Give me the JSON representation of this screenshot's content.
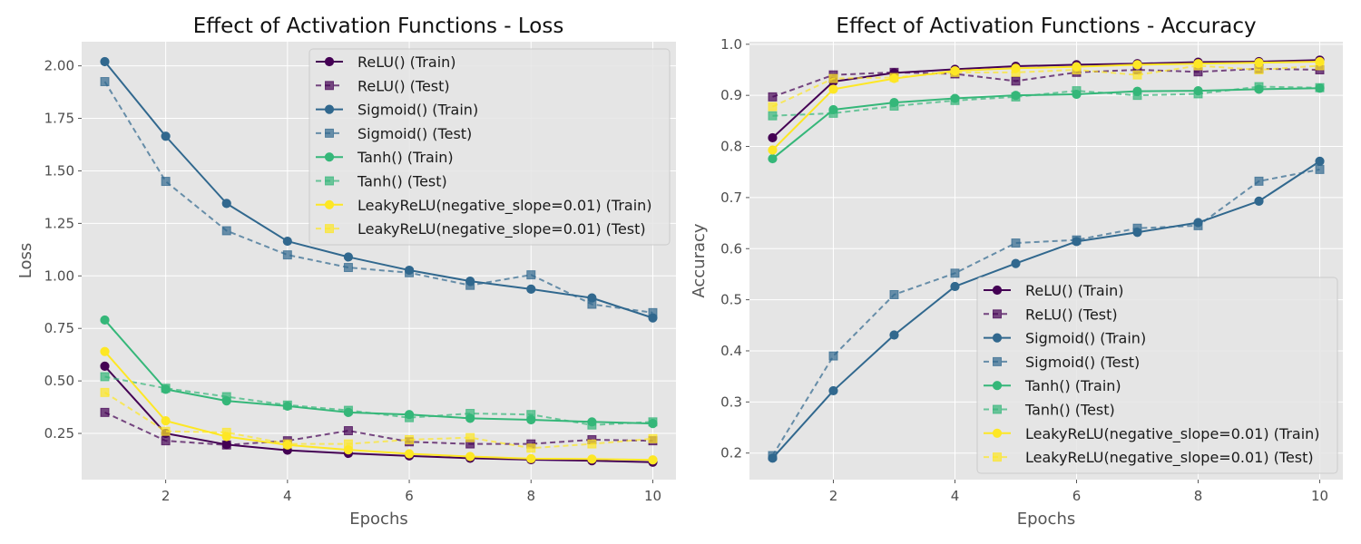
{
  "chart_data": [
    {
      "type": "line",
      "title": "Effect of Activation Functions - Loss",
      "xlabel": "Epochs",
      "ylabel": "Loss",
      "x": [
        1,
        2,
        3,
        4,
        5,
        6,
        7,
        8,
        9,
        10
      ],
      "xlim": [
        0.62,
        10.38
      ],
      "ylim": [
        0.03,
        2.115
      ],
      "xticks": [
        2,
        4,
        6,
        8,
        10
      ],
      "yticks": [
        0.25,
        0.5,
        0.75,
        1.0,
        1.25,
        1.5,
        1.75,
        2.0
      ],
      "ytick_decimals": 2,
      "grid": true,
      "legend_position": "upper right",
      "series": [
        {
          "name": "ReLU() (Train)",
          "color": "#440154",
          "style": "solid",
          "marker": "circle",
          "values": [
            0.57,
            0.25,
            0.197,
            0.17,
            0.155,
            0.143,
            0.132,
            0.125,
            0.12,
            0.113
          ]
        },
        {
          "name": "ReLU() (Test)",
          "color": "#440154",
          "style": "dashed",
          "marker": "square",
          "values": [
            0.35,
            0.215,
            0.195,
            0.215,
            0.263,
            0.21,
            0.2,
            0.2,
            0.22,
            0.215
          ]
        },
        {
          "name": "Sigmoid() (Train)",
          "color": "#31688e",
          "style": "solid",
          "marker": "circle",
          "values": [
            2.02,
            1.665,
            1.345,
            1.165,
            1.09,
            1.027,
            0.975,
            0.937,
            0.895,
            0.8
          ]
        },
        {
          "name": "Sigmoid() (Test)",
          "color": "#31688e",
          "style": "dashed",
          "marker": "square",
          "values": [
            1.925,
            1.45,
            1.215,
            1.1,
            1.04,
            1.015,
            0.955,
            1.005,
            0.865,
            0.825
          ]
        },
        {
          "name": "Tanh() (Train)",
          "color": "#35b779",
          "style": "solid",
          "marker": "circle",
          "values": [
            0.79,
            0.46,
            0.405,
            0.38,
            0.35,
            0.34,
            0.322,
            0.315,
            0.305,
            0.297
          ]
        },
        {
          "name": "Tanh() (Test)",
          "color": "#35b779",
          "style": "dashed",
          "marker": "square",
          "values": [
            0.52,
            0.465,
            0.425,
            0.385,
            0.36,
            0.325,
            0.345,
            0.34,
            0.29,
            0.305
          ]
        },
        {
          "name": "LeakyReLU(negative_slope=0.01) (Train)",
          "color": "#fde725",
          "style": "solid",
          "marker": "circle",
          "values": [
            0.64,
            0.31,
            0.235,
            0.195,
            0.172,
            0.153,
            0.14,
            0.13,
            0.128,
            0.124
          ]
        },
        {
          "name": "LeakyReLU(negative_slope=0.01) (Test)",
          "color": "#fde725",
          "style": "dashed",
          "marker": "square",
          "values": [
            0.445,
            0.26,
            0.255,
            0.2,
            0.2,
            0.22,
            0.23,
            0.18,
            0.2,
            0.225
          ]
        }
      ]
    },
    {
      "type": "line",
      "title": "Effect of Activation Functions - Accuracy",
      "xlabel": "Epochs",
      "ylabel": "Accuracy",
      "x": [
        1,
        2,
        3,
        4,
        5,
        6,
        7,
        8,
        9,
        10
      ],
      "xlim": [
        0.62,
        10.38
      ],
      "ylim": [
        0.148,
        1.005
      ],
      "xticks": [
        2,
        4,
        6,
        8,
        10
      ],
      "yticks": [
        0.2,
        0.3,
        0.4,
        0.5,
        0.6,
        0.7,
        0.8,
        0.9,
        1.0
      ],
      "ytick_decimals": 1,
      "grid": true,
      "legend_position": "lower right",
      "series": [
        {
          "name": "ReLU() (Train)",
          "color": "#440154",
          "style": "solid",
          "marker": "circle",
          "values": [
            0.817,
            0.927,
            0.944,
            0.951,
            0.957,
            0.96,
            0.962,
            0.965,
            0.966,
            0.969
          ]
        },
        {
          "name": "ReLU() (Test)",
          "color": "#440154",
          "style": "dashed",
          "marker": "square",
          "values": [
            0.897,
            0.94,
            0.945,
            0.942,
            0.928,
            0.945,
            0.95,
            0.946,
            0.952,
            0.95
          ]
        },
        {
          "name": "Sigmoid() (Train)",
          "color": "#31688e",
          "style": "solid",
          "marker": "circle",
          "values": [
            0.19,
            0.322,
            0.431,
            0.526,
            0.571,
            0.614,
            0.632,
            0.651,
            0.693,
            0.771
          ]
        },
        {
          "name": "Sigmoid() (Test)",
          "color": "#31688e",
          "style": "dashed",
          "marker": "square",
          "values": [
            0.195,
            0.39,
            0.51,
            0.552,
            0.611,
            0.617,
            0.64,
            0.645,
            0.732,
            0.755
          ]
        },
        {
          "name": "Tanh() (Train)",
          "color": "#35b779",
          "style": "solid",
          "marker": "circle",
          "values": [
            0.776,
            0.872,
            0.886,
            0.894,
            0.9,
            0.902,
            0.908,
            0.909,
            0.912,
            0.914
          ]
        },
        {
          "name": "Tanh() (Test)",
          "color": "#35b779",
          "style": "dashed",
          "marker": "square",
          "values": [
            0.86,
            0.865,
            0.879,
            0.89,
            0.897,
            0.909,
            0.9,
            0.903,
            0.917,
            0.915
          ]
        },
        {
          "name": "LeakyReLU(negative_slope=0.01) (Train)",
          "color": "#fde725",
          "style": "solid",
          "marker": "circle",
          "values": [
            0.793,
            0.912,
            0.933,
            0.948,
            0.953,
            0.956,
            0.96,
            0.962,
            0.964,
            0.966
          ]
        },
        {
          "name": "LeakyReLU(negative_slope=0.01) (Test)",
          "color": "#fde725",
          "style": "dashed",
          "marker": "square",
          "values": [
            0.878,
            0.933,
            0.935,
            0.945,
            0.945,
            0.95,
            0.94,
            0.958,
            0.95,
            0.958
          ]
        }
      ]
    }
  ]
}
